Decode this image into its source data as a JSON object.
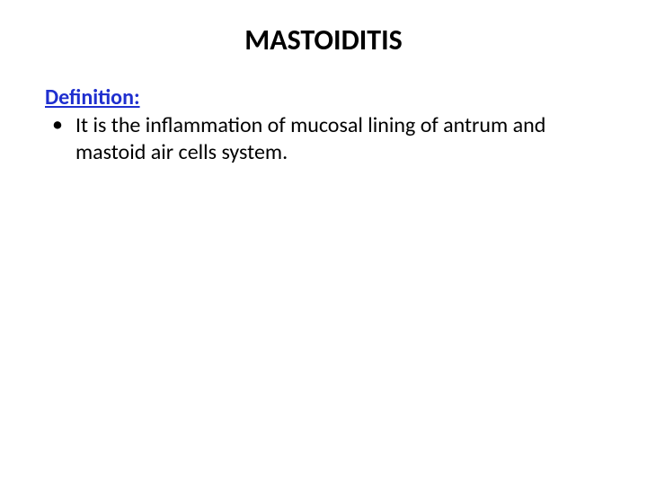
{
  "slide": {
    "title": "MASTOIDITIS",
    "subheading": "Definition:",
    "bullet_marker": "•",
    "definition_text": "It is the inflammation of mucosal lining of antrum and mastoid air cells system."
  },
  "styles": {
    "title_fontsize": "32px",
    "title_color": "#000000",
    "subheading_fontsize": "24px",
    "subheading_color": "#1f2fcf",
    "body_fontsize": "24px",
    "body_color": "#000000",
    "background_color": "#ffffff"
  }
}
